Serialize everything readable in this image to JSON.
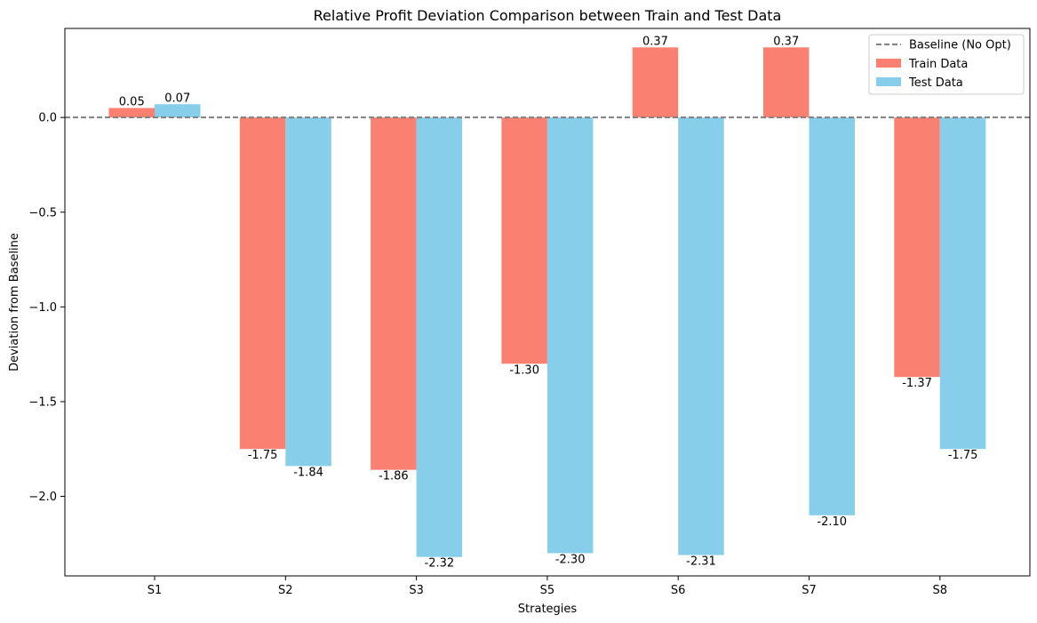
{
  "chart_data": {
    "type": "bar",
    "title": "Relative Profit Deviation Comparison between Train and Test Data",
    "xlabel": "Strategies",
    "ylabel": "Deviation from Baseline",
    "categories": [
      "S1",
      "S2",
      "S3",
      "S5",
      "S6",
      "S7",
      "S8"
    ],
    "ylim": [
      -2.42,
      0.47
    ],
    "yticks": [
      0.0,
      -0.5,
      -1.0,
      -1.5,
      -2.0
    ],
    "ytick_labels": [
      "0.0",
      "−0.5",
      "−1.0",
      "−1.5",
      "−2.0"
    ],
    "series": [
      {
        "name": "Train Data",
        "color": "#FA8072",
        "values": [
          0.05,
          -1.75,
          -1.86,
          -1.3,
          0.37,
          0.37,
          -1.37
        ],
        "labels": [
          "0.05",
          "-1.75",
          "-1.86",
          "-1.30",
          "0.37",
          "0.37",
          "-1.37"
        ]
      },
      {
        "name": "Test Data",
        "color": "#87CEEB",
        "values": [
          0.07,
          -1.84,
          -2.32,
          -2.3,
          -2.31,
          -2.1,
          -1.75
        ],
        "labels": [
          "0.07",
          "-1.84",
          "-2.32",
          "-2.30",
          "-2.31",
          "-2.10",
          "-1.75"
        ]
      }
    ],
    "baseline": {
      "name": "Baseline (No Opt)",
      "value": 0.0,
      "color": "#808080",
      "style": "dashed"
    },
    "legend": {
      "placement": "top-right"
    },
    "grid": false
  }
}
